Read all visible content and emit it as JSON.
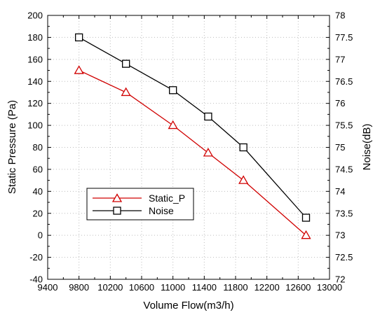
{
  "chart_data": {
    "type": "line",
    "title": "",
    "xlabel": "Volume Flow(m3/h)",
    "ylabel_left": "Static Pressure (Pa)",
    "ylabel_right": "Noise(dB)",
    "xlim": [
      9400,
      13000
    ],
    "ylim_left": [
      -40,
      200
    ],
    "ylim_right": [
      72,
      78
    ],
    "x_ticks": [
      9400,
      9800,
      10200,
      10600,
      11000,
      11400,
      11800,
      12200,
      12600,
      13000
    ],
    "y_left_ticks": [
      -40,
      -20,
      0,
      20,
      40,
      60,
      80,
      100,
      120,
      140,
      160,
      180,
      200
    ],
    "y_right_ticks": [
      "72",
      "72.5",
      "73",
      "73.5",
      "74",
      "74.5",
      "75",
      "75.5",
      "76",
      "76.5",
      "77",
      "77.5",
      "78"
    ],
    "grid": true,
    "legend_position": "lower-left",
    "series": [
      {
        "name": "Static_P",
        "axis": "left",
        "marker": "triangle",
        "color": "#d00000",
        "x": [
          9800,
          10400,
          11000,
          11450,
          11900,
          12700
        ],
        "y": [
          150,
          130,
          100,
          75,
          50,
          0
        ]
      },
      {
        "name": "Noise",
        "axis": "right",
        "marker": "square",
        "color": "#000000",
        "x": [
          9800,
          10400,
          11000,
          11450,
          11900,
          12700
        ],
        "y": [
          77.5,
          76.9,
          76.3,
          75.7,
          75.0,
          73.4
        ]
      }
    ]
  }
}
